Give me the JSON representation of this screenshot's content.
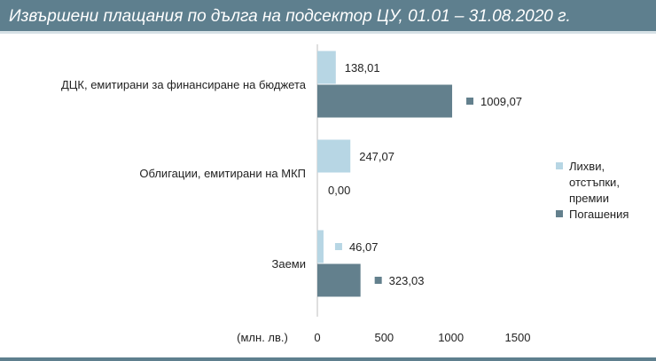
{
  "header": {
    "title": "Извършени плащания по дълга на подсектор ЦУ, 01.01 – 31.08.2020 г."
  },
  "colors": {
    "interest": "#b7d6e4",
    "repayment": "#63808d",
    "header_bg": "#5e7f8e"
  },
  "chart_data": {
    "type": "bar",
    "orientation": "horizontal",
    "title": "Извършени плащания по дълга на подсектор ЦУ, 01.01 – 31.08.2020 г.",
    "unit_label": "(млн. лв.)",
    "categories": [
      "ДЦК, емитирани за финансиране на бюджета",
      "Облигации, емитирани на МКП",
      "Заеми"
    ],
    "series": [
      {
        "name": "Лихви, отстъпки, премии",
        "legend_lines": [
          "Лихви,",
          "отстъпки,",
          "премии"
        ],
        "color": "#b7d6e4",
        "values": [
          138.01,
          247.07,
          46.07
        ],
        "labels": [
          "138,01",
          "247,07",
          "46,07"
        ]
      },
      {
        "name": "Погашения",
        "legend_lines": [
          "Погашения"
        ],
        "color": "#63808d",
        "values": [
          1009.07,
          0.0,
          323.03
        ],
        "labels": [
          "1009,07",
          "0,00",
          "323,03"
        ]
      }
    ],
    "xlim": [
      0,
      1500
    ],
    "xticks": [
      0,
      500,
      1000,
      1500
    ],
    "xtick_labels": [
      "0",
      "500",
      "1000",
      "1500"
    ],
    "grid": false,
    "legend_position": "right"
  }
}
